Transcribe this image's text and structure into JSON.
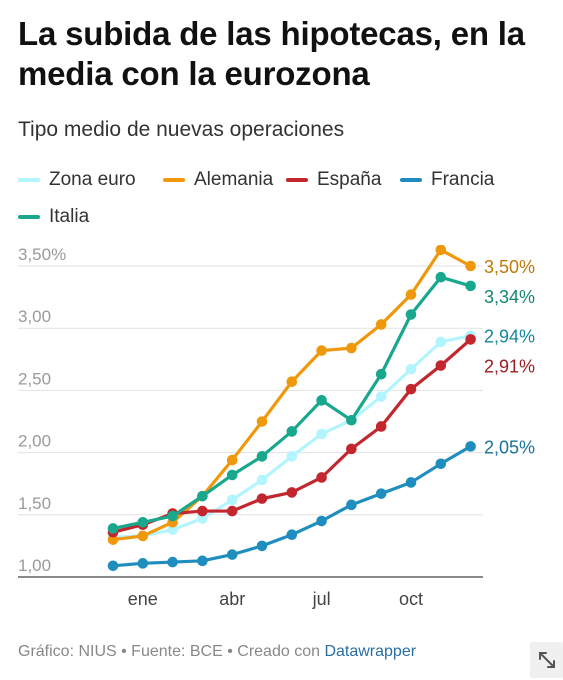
{
  "header": {
    "title": "La subida de las hipotecas, en la media con la eurozona",
    "subtitle": "Tipo medio de nuevas operaciones"
  },
  "footer": {
    "credit": "Gráfico: NIUS • Fuente: BCE • Creado con ",
    "tool_link": "Datawrapper"
  },
  "icons": {
    "expand": "expand-arrows-icon"
  },
  "chart_data": {
    "type": "line",
    "title": "La subida de las hipotecas, en la media con la eurozona",
    "subtitle": "Tipo medio de nuevas operaciones",
    "x_tick_labels": [
      "ene",
      "abr",
      "jul",
      "oct"
    ],
    "x_tick_indices": [
      1,
      4,
      7,
      10
    ],
    "y_ticks": [
      1.0,
      1.5,
      2.0,
      2.5,
      3.0,
      3.5
    ],
    "y_tick_labels": [
      "1,00",
      "1,50",
      "2,00",
      "2,50",
      "3,00",
      "3,50%"
    ],
    "ylim": [
      0.9,
      3.6
    ],
    "grid": "horizontal",
    "legend_position": "top",
    "series": [
      {
        "name": "Zona euro",
        "color": "#b3f5ff",
        "values": [
          1.32,
          1.33,
          1.38,
          1.47,
          1.62,
          1.78,
          1.97,
          2.15,
          2.26,
          2.45,
          2.67,
          2.89,
          2.94
        ],
        "end_label": "2,94%"
      },
      {
        "name": "Alemania",
        "color": "#f0980c",
        "values": [
          1.3,
          1.33,
          1.44,
          1.65,
          1.94,
          2.25,
          2.57,
          2.82,
          2.84,
          3.03,
          3.27,
          3.63,
          3.5
        ],
        "end_label": "3,50%"
      },
      {
        "name": "España",
        "color": "#c1272d",
        "values": [
          1.36,
          1.42,
          1.51,
          1.53,
          1.53,
          1.63,
          1.68,
          1.8,
          2.03,
          2.21,
          2.51,
          2.7,
          2.91
        ],
        "end_label": "2,91%"
      },
      {
        "name": "Francia",
        "color": "#1f8ebf",
        "values": [
          1.09,
          1.11,
          1.12,
          1.13,
          1.18,
          1.25,
          1.34,
          1.45,
          1.58,
          1.67,
          1.76,
          1.91,
          2.05
        ],
        "end_label": "2,05%"
      },
      {
        "name": "Italia",
        "color": "#19a88e",
        "values": [
          1.39,
          1.44,
          1.49,
          1.65,
          1.82,
          1.97,
          2.17,
          2.42,
          2.26,
          2.63,
          3.11,
          3.41,
          3.34
        ],
        "end_label": "3,34%"
      }
    ]
  }
}
